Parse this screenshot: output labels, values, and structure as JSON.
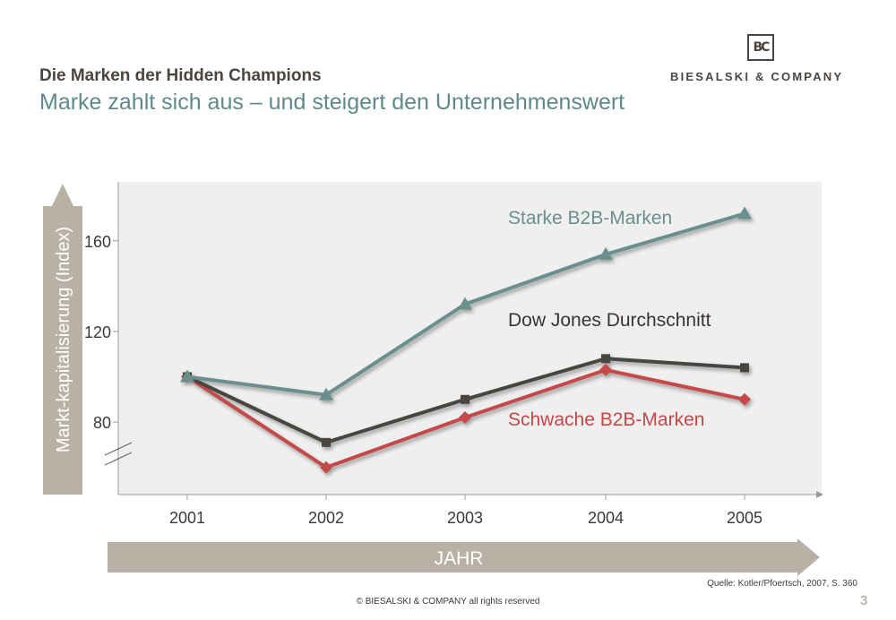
{
  "header": {
    "title": "Die Marken der Hidden Champions",
    "subtitle": "Marke zahlt sich aus – und steigert den Unternehmenswert"
  },
  "logo": {
    "mark": "BC",
    "text": "BIESALSKI & COMPANY"
  },
  "chart_data": {
    "type": "line",
    "title": "",
    "xlabel": "JAHR",
    "ylabel": "Markt-kapitalisierung (Index)",
    "x": [
      "2001",
      "2002",
      "2003",
      "2004",
      "2005"
    ],
    "yticks": [
      80,
      120,
      160
    ],
    "ylim": [
      48,
      186
    ],
    "axis_break": true,
    "grid": false,
    "series": [
      {
        "name": "Starke B2B-Marken",
        "marker": "triangle",
        "color": "#6a8f8d",
        "values": [
          100,
          92,
          132,
          154,
          172
        ]
      },
      {
        "name": "Dow Jones Durchschnitt",
        "marker": "square",
        "color": "#4a4540",
        "values": [
          100,
          71,
          90,
          108,
          104
        ]
      },
      {
        "name": "Schwache B2B-Marken",
        "marker": "diamond",
        "color": "#c44848",
        "values": [
          100,
          60,
          82,
          103,
          90
        ]
      }
    ],
    "background": "#efefef",
    "arrow_color": "#b9b1a6"
  },
  "footer": {
    "source": "Quelle: Kotler/Pfoertsch, 2007, S. 360",
    "copyright": "© BIESALSKI & COMPANY all rights reserved",
    "page_number": "3"
  }
}
